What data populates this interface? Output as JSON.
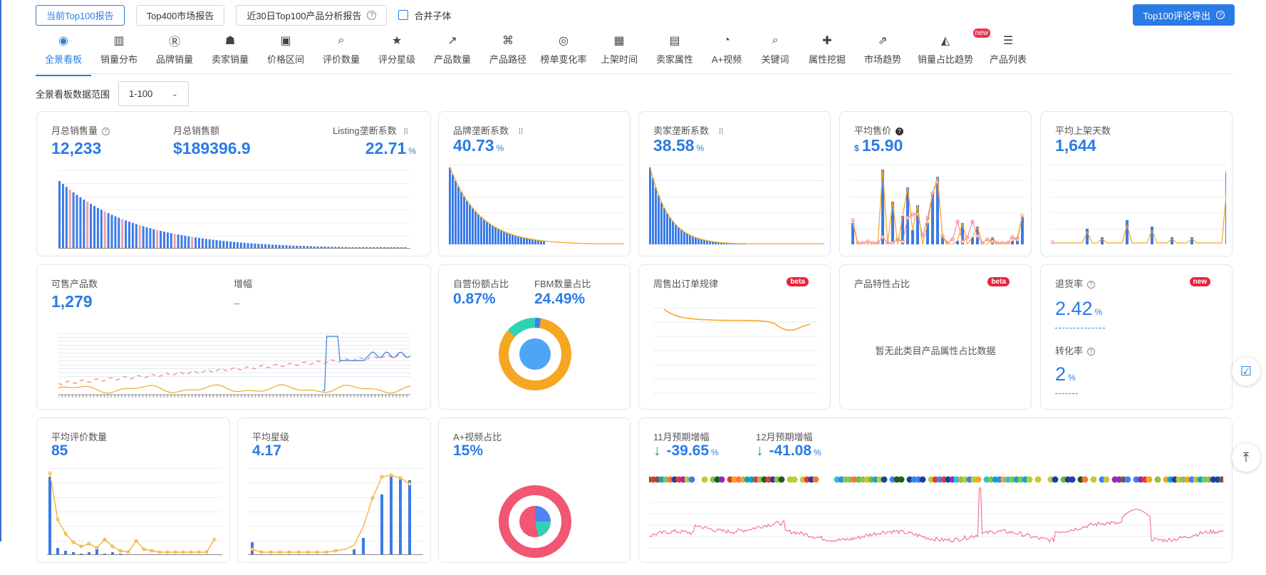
{
  "topbar": {
    "buttons": [
      "当前Top100报告",
      "Top400市场报告",
      "近30日Top100产品分析报告"
    ],
    "merge_label": "合并子体",
    "export_label": "Top100评论导出"
  },
  "tabs": [
    {
      "label": "全景看板",
      "icon": "dashboard-icon",
      "glyph": "◉"
    },
    {
      "label": "销量分布",
      "icon": "bar-chart-icon",
      "glyph": "▥"
    },
    {
      "label": "品牌销量",
      "icon": "brand-r-icon",
      "glyph": "Ⓡ"
    },
    {
      "label": "卖家销量",
      "icon": "seller-icon",
      "glyph": "☗"
    },
    {
      "label": "价格区间",
      "icon": "price-tag-icon",
      "glyph": "▣"
    },
    {
      "label": "评价数量",
      "icon": "review-search-icon",
      "glyph": "⌕"
    },
    {
      "label": "评分星级",
      "icon": "star-icon",
      "glyph": "★"
    },
    {
      "label": "产品数量",
      "icon": "trend-icon",
      "glyph": "↗"
    },
    {
      "label": "产品路径",
      "icon": "sitemap-icon",
      "glyph": "⌘"
    },
    {
      "label": "榜单变化率",
      "icon": "rate-icon",
      "glyph": "◎"
    },
    {
      "label": "上架时间",
      "icon": "calendar-icon",
      "glyph": "▦"
    },
    {
      "label": "卖家属性",
      "icon": "store-icon",
      "glyph": "▤"
    },
    {
      "label": "A+视频",
      "icon": "pie-icon",
      "glyph": "◔"
    },
    {
      "label": "关键词",
      "icon": "keyword-icon",
      "glyph": "⌕"
    },
    {
      "label": "属性挖掘",
      "icon": "puzzle-icon",
      "glyph": "✚"
    },
    {
      "label": "市场趋势",
      "icon": "market-icon",
      "glyph": "⇗"
    },
    {
      "label": "销量占比趋势",
      "icon": "area-chart-icon",
      "glyph": "◭",
      "badge": "new"
    },
    {
      "label": "产品列表",
      "icon": "list-icon",
      "glyph": "☰"
    }
  ],
  "range": {
    "label": "全景看板数据范围",
    "value": "1-100"
  },
  "cards": {
    "sales": {
      "monthly_units_label": "月总销售量",
      "monthly_units": "12,233",
      "monthly_revenue_label": "月总销售额",
      "monthly_revenue": "$189396.9",
      "listing_label": "Listing垄断系数",
      "listing_value": "22.71",
      "unit_pct": "%"
    },
    "brand": {
      "label": "品牌垄断系数",
      "value": "40.73",
      "unit": "%"
    },
    "seller": {
      "label": "卖家垄断系数",
      "value": "38.58",
      "unit": "%"
    },
    "price": {
      "label": "平均售价",
      "currency": "$",
      "value": "15.90"
    },
    "days": {
      "label": "平均上架天数",
      "value": "1,644"
    },
    "sellable": {
      "label": "可售产品数",
      "value": "1,279",
      "growth_label": "增幅",
      "growth_value": "--"
    },
    "self_ops": {
      "label": "自营份额占比",
      "value": "0.87%",
      "fbm_label": "FBM数量占比",
      "fbm_value": "24.49%"
    },
    "weekly": {
      "label": "周售出订单规律",
      "badge": "beta"
    },
    "attr": {
      "label": "产品特性占比",
      "badge": "beta",
      "empty": "暂无此类目产品属性占比数据"
    },
    "returns": {
      "label": "退货率",
      "badge": "new",
      "value": "2.42",
      "unit": "%",
      "conv_label": "转化率",
      "conv_value": "2",
      "conv_unit": "%"
    },
    "reviews": {
      "label": "平均评价数量",
      "value": "85"
    },
    "stars": {
      "label": "平均星级",
      "value": "4.17"
    },
    "aplus": {
      "label": "A+视频占比",
      "value": "15%"
    },
    "forecast": {
      "nov_label": "11月预期增幅",
      "nov_value": "-39.65",
      "dec_label": "12月预期增幅",
      "dec_value": "-41.08",
      "unit": "%"
    }
  },
  "colors": {
    "primary": "#2b7be5",
    "orange": "#f5a623",
    "pink": "#f07c8a",
    "red": "#e8243c",
    "green": "#1ea34a"
  }
}
